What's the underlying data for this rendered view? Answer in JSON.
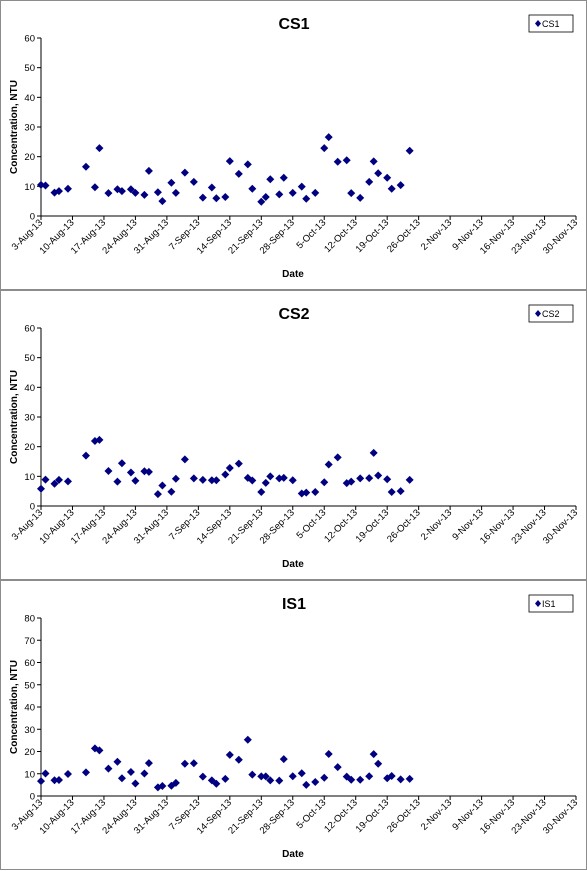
{
  "chart_data": [
    {
      "type": "scatter",
      "title": "CS1",
      "xlabel": "Date",
      "ylabel": "Concentration, NTU",
      "ylim": [
        0,
        60
      ],
      "yticks": [
        0,
        10,
        20,
        30,
        40,
        50,
        60
      ],
      "xlim": [
        "2013-08-03",
        "2013-11-30"
      ],
      "xtick_labels": [
        "3-Aug-13",
        "10-Aug-13",
        "17-Aug-13",
        "24-Aug-13",
        "31-Aug-13",
        "7-Sep-13",
        "14-Sep-13",
        "21-Sep-13",
        "28-Sep-13",
        "5-Oct-13",
        "12-Oct-13",
        "19-Oct-13",
        "26-Oct-13",
        "2-Nov-13",
        "9-Nov-13",
        "16-Nov-13",
        "23-Nov-13",
        "30-Nov-13"
      ],
      "legend_position": "top-right",
      "grid": false,
      "marker_color": "#000080",
      "series": [
        {
          "name": "CS1",
          "points": [
            [
              "2013-08-03",
              10.5
            ],
            [
              "2013-08-04",
              10.3
            ],
            [
              "2013-08-06",
              7.9
            ],
            [
              "2013-08-07",
              8.4
            ],
            [
              "2013-08-09",
              9.2
            ],
            [
              "2013-08-13",
              16.6
            ],
            [
              "2013-08-15",
              9.7
            ],
            [
              "2013-08-16",
              22.9
            ],
            [
              "2013-08-18",
              7.7
            ],
            [
              "2013-08-20",
              9.0
            ],
            [
              "2013-08-21",
              8.4
            ],
            [
              "2013-08-23",
              9.0
            ],
            [
              "2013-08-24",
              7.8
            ],
            [
              "2013-08-26",
              7.1
            ],
            [
              "2013-08-27",
              15.2
            ],
            [
              "2013-08-29",
              8.0
            ],
            [
              "2013-08-30",
              5.0
            ],
            [
              "2013-09-01",
              11.2
            ],
            [
              "2013-09-02",
              7.8
            ],
            [
              "2013-09-04",
              14.6
            ],
            [
              "2013-09-06",
              11.5
            ],
            [
              "2013-09-08",
              6.2
            ],
            [
              "2013-09-10",
              9.6
            ],
            [
              "2013-09-11",
              6.0
            ],
            [
              "2013-09-13",
              6.4
            ],
            [
              "2013-09-14",
              18.5
            ],
            [
              "2013-09-16",
              14.2
            ],
            [
              "2013-09-18",
              17.4
            ],
            [
              "2013-09-19",
              9.2
            ],
            [
              "2013-09-21",
              4.8
            ],
            [
              "2013-09-22",
              6.4
            ],
            [
              "2013-09-23",
              12.4
            ],
            [
              "2013-09-25",
              7.3
            ],
            [
              "2013-09-26",
              12.9
            ],
            [
              "2013-09-28",
              7.8
            ],
            [
              "2013-09-30",
              9.9
            ],
            [
              "2013-10-01",
              5.8
            ],
            [
              "2013-10-03",
              7.8
            ],
            [
              "2013-10-05",
              22.9
            ],
            [
              "2013-10-06",
              26.6
            ],
            [
              "2013-10-08",
              18.3
            ],
            [
              "2013-10-10",
              18.8
            ],
            [
              "2013-10-11",
              7.7
            ],
            [
              "2013-10-13",
              6.1
            ],
            [
              "2013-10-15",
              11.5
            ],
            [
              "2013-10-16",
              18.4
            ],
            [
              "2013-10-17",
              14.4
            ],
            [
              "2013-10-19",
              12.9
            ],
            [
              "2013-10-20",
              9.2
            ],
            [
              "2013-10-22",
              10.4
            ],
            [
              "2013-10-24",
              22.0
            ]
          ]
        }
      ]
    },
    {
      "type": "scatter",
      "title": "CS2",
      "xlabel": "Date",
      "ylabel": "Concentration, NTU",
      "ylim": [
        0,
        60
      ],
      "yticks": [
        0,
        10,
        20,
        30,
        40,
        50,
        60
      ],
      "xlim": [
        "2013-08-03",
        "2013-11-30"
      ],
      "xtick_labels": [
        "3-Aug-13",
        "10-Aug-13",
        "17-Aug-13",
        "24-Aug-13",
        "31-Aug-13",
        "7-Sep-13",
        "14-Sep-13",
        "21-Sep-13",
        "28-Sep-13",
        "5-Oct-13",
        "12-Oct-13",
        "19-Oct-13",
        "26-Oct-13",
        "2-Nov-13",
        "9-Nov-13",
        "16-Nov-13",
        "23-Nov-13",
        "30-Nov-13"
      ],
      "legend_position": "top-right",
      "grid": false,
      "marker_color": "#000080",
      "series": [
        {
          "name": "CS2",
          "points": [
            [
              "2013-08-03",
              5.8
            ],
            [
              "2013-08-04",
              8.9
            ],
            [
              "2013-08-06",
              7.5
            ],
            [
              "2013-08-07",
              8.8
            ],
            [
              "2013-08-09",
              8.3
            ],
            [
              "2013-08-13",
              17.0
            ],
            [
              "2013-08-15",
              21.9
            ],
            [
              "2013-08-16",
              22.3
            ],
            [
              "2013-08-18",
              11.8
            ],
            [
              "2013-08-20",
              8.2
            ],
            [
              "2013-08-21",
              14.4
            ],
            [
              "2013-08-23",
              11.3
            ],
            [
              "2013-08-24",
              8.5
            ],
            [
              "2013-08-26",
              11.7
            ],
            [
              "2013-08-27",
              11.5
            ],
            [
              "2013-08-29",
              4.0
            ],
            [
              "2013-08-30",
              6.9
            ],
            [
              "2013-09-01",
              4.8
            ],
            [
              "2013-09-02",
              9.2
            ],
            [
              "2013-09-04",
              15.7
            ],
            [
              "2013-09-06",
              9.3
            ],
            [
              "2013-09-08",
              8.8
            ],
            [
              "2013-09-10",
              8.7
            ],
            [
              "2013-09-11",
              8.7
            ],
            [
              "2013-09-13",
              10.6
            ],
            [
              "2013-09-14",
              12.8
            ],
            [
              "2013-09-16",
              14.3
            ],
            [
              "2013-09-18",
              9.5
            ],
            [
              "2013-09-19",
              8.6
            ],
            [
              "2013-09-21",
              4.7
            ],
            [
              "2013-09-22",
              7.8
            ],
            [
              "2013-09-23",
              10.0
            ],
            [
              "2013-09-25",
              9.3
            ],
            [
              "2013-09-26",
              9.5
            ],
            [
              "2013-09-28",
              8.7
            ],
            [
              "2013-09-30",
              4.2
            ],
            [
              "2013-10-01",
              4.5
            ],
            [
              "2013-10-03",
              4.7
            ],
            [
              "2013-10-05",
              8.0
            ],
            [
              "2013-10-06",
              14.0
            ],
            [
              "2013-10-08",
              16.4
            ],
            [
              "2013-10-10",
              7.7
            ],
            [
              "2013-10-11",
              8.2
            ],
            [
              "2013-10-13",
              9.3
            ],
            [
              "2013-10-15",
              9.4
            ],
            [
              "2013-10-16",
              17.9
            ],
            [
              "2013-10-17",
              10.3
            ],
            [
              "2013-10-19",
              9.0
            ],
            [
              "2013-10-20",
              4.7
            ],
            [
              "2013-10-22",
              5.0
            ],
            [
              "2013-10-24",
              8.8
            ]
          ]
        }
      ]
    },
    {
      "type": "scatter",
      "title": "IS1",
      "xlabel": "Date",
      "ylabel": "Concentration, NTU",
      "ylim": [
        0,
        80
      ],
      "yticks": [
        0,
        10,
        20,
        30,
        40,
        50,
        60,
        70,
        80
      ],
      "xlim": [
        "2013-08-03",
        "2013-11-30"
      ],
      "xtick_labels": [
        "3-Aug-13",
        "10-Aug-13",
        "17-Aug-13",
        "24-Aug-13",
        "31-Aug-13",
        "7-Sep-13",
        "14-Sep-13",
        "21-Sep-13",
        "28-Sep-13",
        "5-Oct-13",
        "12-Oct-13",
        "19-Oct-13",
        "26-Oct-13",
        "2-Nov-13",
        "9-Nov-13",
        "16-Nov-13",
        "23-Nov-13",
        "30-Nov-13"
      ],
      "legend_position": "top-right",
      "grid": false,
      "marker_color": "#000080",
      "series": [
        {
          "name": "IS1",
          "points": [
            [
              "2013-08-03",
              6.7
            ],
            [
              "2013-08-04",
              10.1
            ],
            [
              "2013-08-06",
              7.1
            ],
            [
              "2013-08-07",
              7.2
            ],
            [
              "2013-08-09",
              9.9
            ],
            [
              "2013-08-13",
              10.6
            ],
            [
              "2013-08-15",
              21.4
            ],
            [
              "2013-08-16",
              20.5
            ],
            [
              "2013-08-18",
              12.3
            ],
            [
              "2013-08-20",
              15.4
            ],
            [
              "2013-08-21",
              8.0
            ],
            [
              "2013-08-23",
              10.8
            ],
            [
              "2013-08-24",
              5.6
            ],
            [
              "2013-08-26",
              10.1
            ],
            [
              "2013-08-27",
              14.8
            ],
            [
              "2013-08-29",
              3.9
            ],
            [
              "2013-08-30",
              4.5
            ],
            [
              "2013-09-01",
              4.6
            ],
            [
              "2013-09-02",
              5.9
            ],
            [
              "2013-09-04",
              14.5
            ],
            [
              "2013-09-06",
              14.7
            ],
            [
              "2013-09-08",
              8.7
            ],
            [
              "2013-09-10",
              7.0
            ],
            [
              "2013-09-11",
              5.5
            ],
            [
              "2013-09-13",
              7.7
            ],
            [
              "2013-09-14",
              18.5
            ],
            [
              "2013-09-16",
              16.3
            ],
            [
              "2013-09-18",
              25.3
            ],
            [
              "2013-09-19",
              9.6
            ],
            [
              "2013-09-21",
              8.8
            ],
            [
              "2013-09-22",
              8.8
            ],
            [
              "2013-09-23",
              7.0
            ],
            [
              "2013-09-25",
              6.9
            ],
            [
              "2013-09-26",
              16.6
            ],
            [
              "2013-09-28",
              8.9
            ],
            [
              "2013-09-30",
              10.2
            ],
            [
              "2013-10-01",
              5.0
            ],
            [
              "2013-10-03",
              6.3
            ],
            [
              "2013-10-05",
              8.2
            ],
            [
              "2013-10-06",
              18.9
            ],
            [
              "2013-10-08",
              13.0
            ],
            [
              "2013-10-10",
              8.7
            ],
            [
              "2013-10-11",
              7.3
            ],
            [
              "2013-10-13",
              7.3
            ],
            [
              "2013-10-15",
              8.9
            ],
            [
              "2013-10-16",
              18.8
            ],
            [
              "2013-10-17",
              14.5
            ],
            [
              "2013-10-19",
              8.0
            ],
            [
              "2013-10-20",
              9.0
            ],
            [
              "2013-10-22",
              7.5
            ],
            [
              "2013-10-24",
              7.7
            ]
          ]
        }
      ]
    }
  ]
}
